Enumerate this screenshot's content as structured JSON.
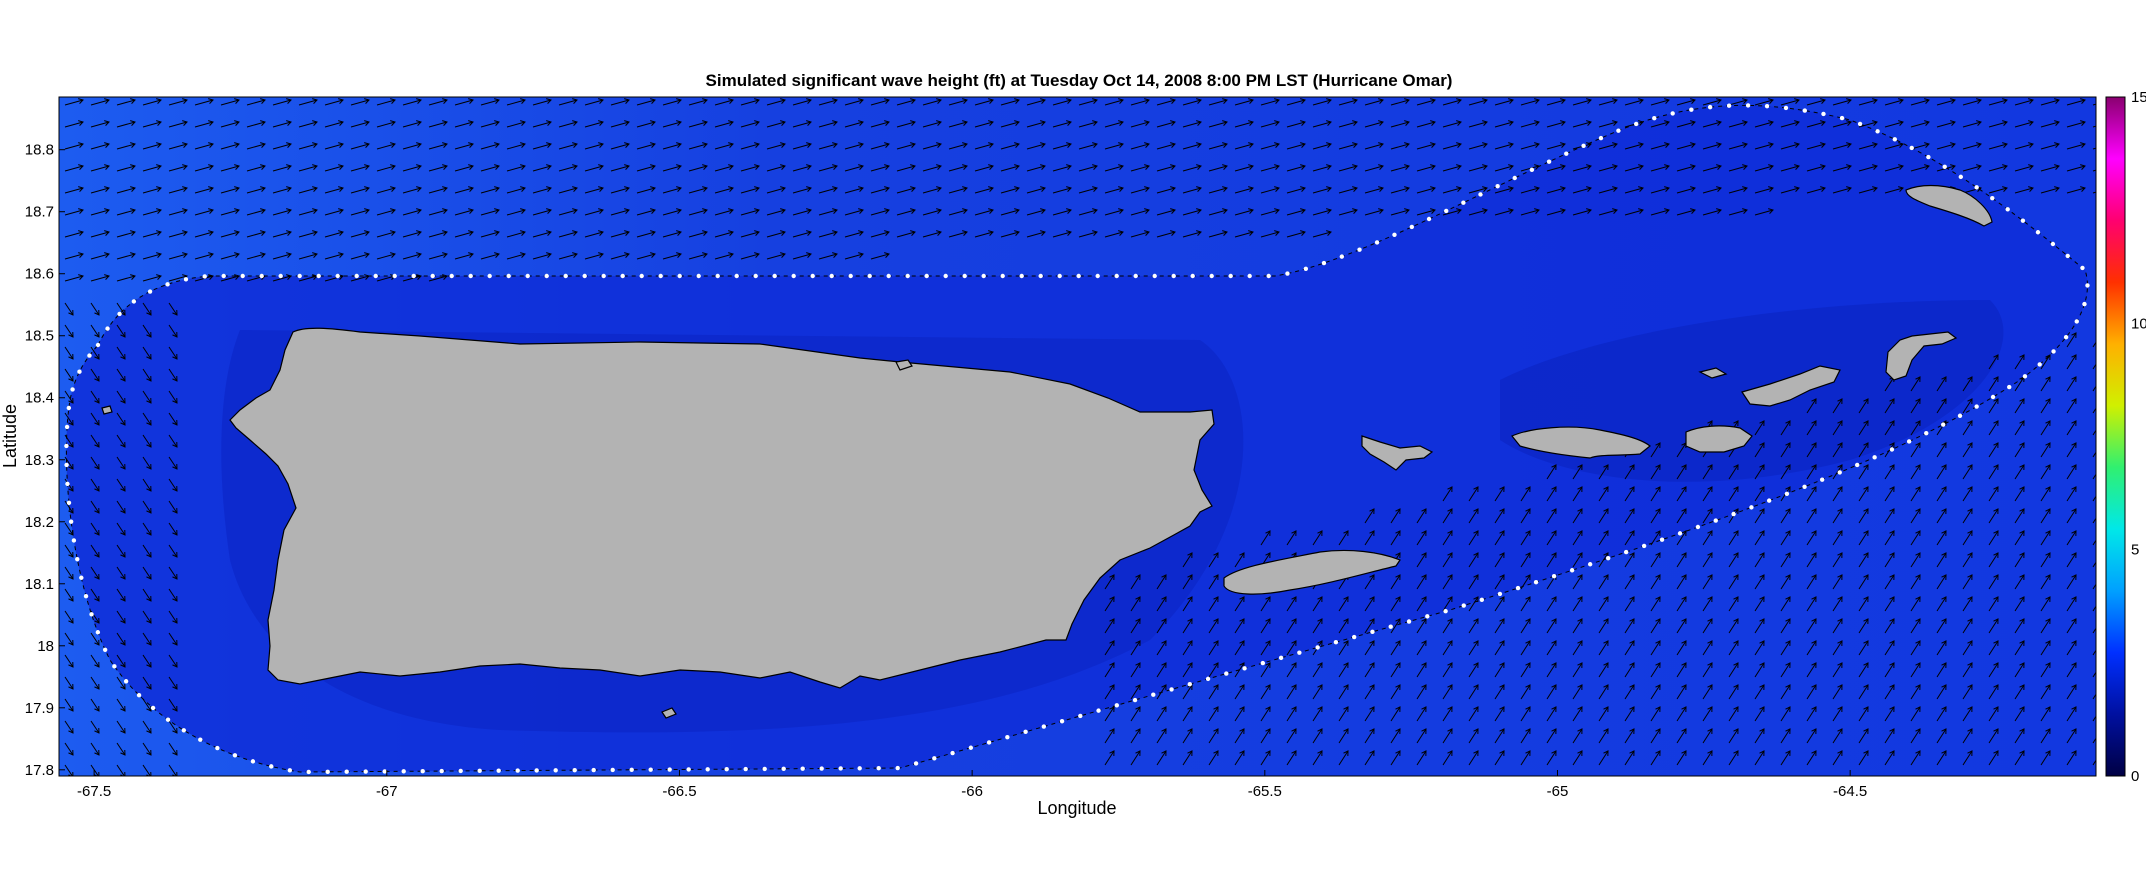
{
  "title": "Simulated significant wave height (ft) at Tuesday Oct 14, 2008  8:00 PM LST (Hurricane Omar)",
  "xlabel": "Longitude",
  "ylabel": "Latitude",
  "x_ticks": [
    "-67.5",
    "-67",
    "-66.5",
    "-66",
    "-65.5",
    "-65",
    "-64.5"
  ],
  "y_ticks": [
    "18.8",
    "18.7",
    "18.6",
    "18.5",
    "18.4",
    "18.3",
    "18.2",
    "18.1",
    "18",
    "17.9",
    "17.8"
  ],
  "colorbar": {
    "label_ticks": [
      "15",
      "10",
      "5",
      "0"
    ],
    "min": 0,
    "max": 15,
    "colors": [
      "#000044",
      "#0010a0",
      "#0030ff",
      "#00a0ff",
      "#00e8e8",
      "#30f070",
      "#d0f000",
      "#ffb000",
      "#ff3000",
      "#ff0070",
      "#ff00ff",
      "#8a0070"
    ]
  },
  "colors": {
    "land": "#b3b3b3",
    "ocean_offshore": "#1a52e8",
    "ocean_nearshore": "#1530c8",
    "ocean_deep": "#0b1a9a"
  },
  "chart_data": {
    "type": "heatmap",
    "title": "Simulated significant wave height (ft) at Tuesday Oct 14, 2008  8:00 PM LST (Hurricane Omar)",
    "xlabel": "Longitude",
    "ylabel": "Latitude",
    "xlim": [
      -67.56,
      -64.08
    ],
    "ylim": [
      17.79,
      18.885
    ],
    "value_range": [
      0,
      15
    ],
    "units": "ft"
  }
}
